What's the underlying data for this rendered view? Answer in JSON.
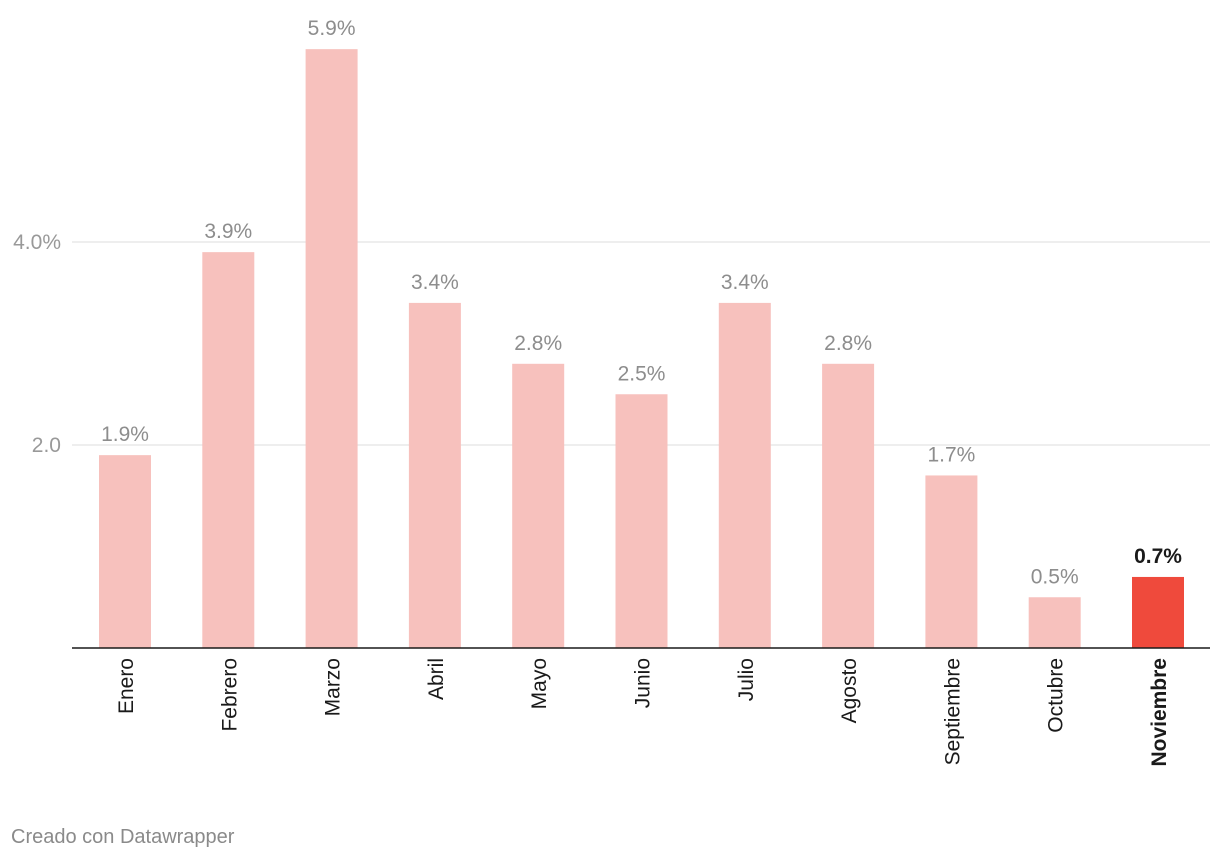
{
  "chart_data": {
    "type": "bar",
    "title": "",
    "xlabel": "",
    "ylabel": "",
    "categories": [
      "Enero",
      "Febrero",
      "Marzo",
      "Abril",
      "Mayo",
      "Junio",
      "Julio",
      "Agosto",
      "Septiembre",
      "Octubre",
      "Noviembre"
    ],
    "values": [
      1.9,
      3.9,
      5.9,
      3.4,
      2.8,
      2.5,
      3.4,
      2.8,
      1.7,
      0.5,
      0.7
    ],
    "value_labels": [
      "1.9%",
      "3.9%",
      "5.9%",
      "3.4%",
      "2.8%",
      "2.5%",
      "3.4%",
      "2.8%",
      "1.7%",
      "0.5%",
      "0.7%"
    ],
    "highlight_index": 10,
    "ylim": [
      0,
      6
    ],
    "y_ticks": [
      {
        "value": 2,
        "label": "2.0"
      },
      {
        "value": 4,
        "label": "4.0%"
      }
    ],
    "grid": true,
    "legend": "none",
    "colors": {
      "bar": "#f7c1bd",
      "bar_highlight": "#ef4a3c",
      "label": "#8d8d8d",
      "label_highlight": "#1a1a1a",
      "gridline": "#e3e3e3",
      "axis": "#1a1a1a"
    }
  },
  "footer": {
    "credit": "Creado con Datawrapper"
  }
}
